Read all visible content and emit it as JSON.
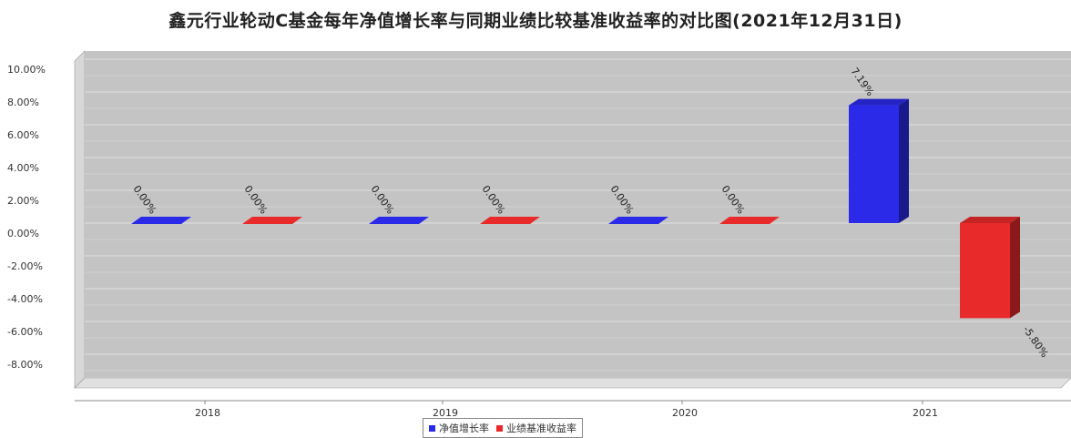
{
  "chart_data": {
    "type": "bar",
    "title": "鑫元行业轮动C基金每年净值增长率与同期业绩比较基准收益率的对比图(2021年12月31日)",
    "categories": [
      "2018",
      "2019",
      "2020",
      "2021"
    ],
    "series": [
      {
        "name": "净值增长率",
        "color": "#2a2ae8",
        "values": [
          0.0,
          0.0,
          0.0,
          7.19
        ],
        "labels": [
          "0.00%",
          "0.00%",
          "0.00%",
          "7.19%"
        ]
      },
      {
        "name": "业绩基准收益率",
        "color": "#e82a2a",
        "values": [
          0.0,
          0.0,
          0.0,
          -5.8
        ],
        "labels": [
          "0.00%",
          "0.00%",
          "0.00%",
          "-5.80%"
        ]
      }
    ],
    "yticks": [
      "10.00%",
      "8.00%",
      "6.00%",
      "4.00%",
      "2.00%",
      "0.00%",
      "-2.00%",
      "-4.00%",
      "-6.00%",
      "-8.00%"
    ],
    "ylim": [
      -9.5,
      10.5
    ],
    "xlabel": "",
    "ylabel": "",
    "grid": true,
    "legend": "bottom"
  }
}
